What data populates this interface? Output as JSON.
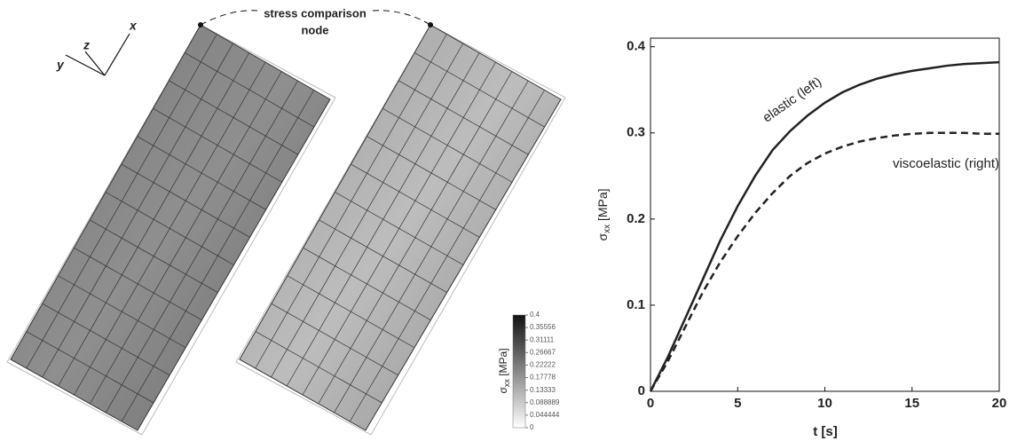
{
  "figure": {
    "annotation": [
      "stress comparison",
      "node"
    ],
    "axes_triad": {
      "x": "x",
      "y": "y",
      "z": "z"
    },
    "colorbar": {
      "label": {
        "symbol": "σ",
        "subscript": "xx",
        "unit": "[MPa]"
      },
      "lim": [
        0,
        0.4
      ],
      "ticks": [
        0.4,
        0.35556,
        0.31111,
        0.26667,
        0.22222,
        0.17778,
        0.13333,
        0.088889,
        0.044444,
        0
      ]
    }
  },
  "chart_data": {
    "type": "line",
    "x_label": "t [s]",
    "y_label": {
      "symbol": "σ",
      "subscript": "xx",
      "unit": "[MPa]"
    },
    "x": [
      0,
      1,
      2,
      3,
      4,
      5,
      6,
      7,
      8,
      9,
      10,
      11,
      12,
      13,
      14,
      15,
      16,
      17,
      18,
      19,
      20
    ],
    "series": [
      {
        "name": "elastic (left)",
        "color": "#222222",
        "linestyle": "solid",
        "values": [
          0,
          0.04,
          0.085,
          0.13,
          0.175,
          0.215,
          0.25,
          0.28,
          0.302,
          0.32,
          0.335,
          0.347,
          0.356,
          0.363,
          0.368,
          0.372,
          0.375,
          0.378,
          0.38,
          0.381,
          0.382
        ]
      },
      {
        "name": "viscoelastic (right)",
        "color": "#222222",
        "linestyle": "dashed",
        "values": [
          0,
          0.035,
          0.075,
          0.115,
          0.15,
          0.18,
          0.207,
          0.23,
          0.25,
          0.265,
          0.276,
          0.284,
          0.29,
          0.294,
          0.297,
          0.299,
          0.3,
          0.3,
          0.3,
          0.299,
          0.299
        ]
      }
    ],
    "xlim": [
      0,
      20
    ],
    "xticks": [
      0,
      5,
      10,
      15,
      20
    ],
    "ylim": [
      0,
      0.41
    ],
    "yticks": [
      0,
      0.1,
      0.2,
      0.3,
      0.4
    ]
  }
}
